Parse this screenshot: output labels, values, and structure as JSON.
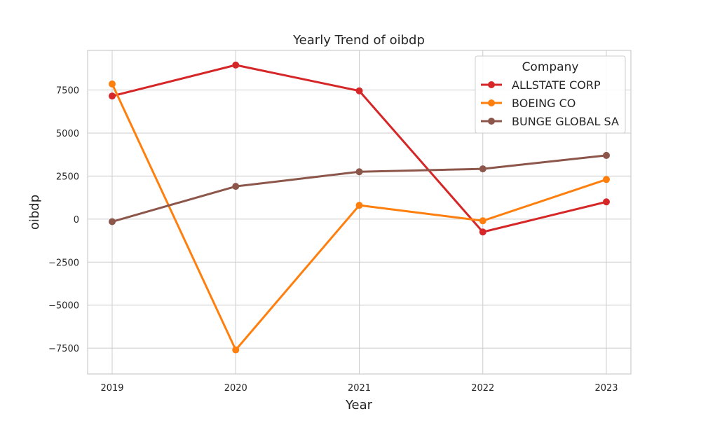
{
  "chart_data": {
    "type": "line",
    "title": "Yearly Trend of oibdp",
    "xlabel": "Year",
    "ylabel": "oibdp",
    "categories": [
      "2019",
      "2020",
      "2021",
      "2022",
      "2023"
    ],
    "ylim": [
      -9000,
      9800
    ],
    "yticks": [
      -7500,
      -5000,
      -2500,
      0,
      2500,
      5000,
      7500
    ],
    "ytick_labels": [
      "−7500",
      "−5000",
      "−2500",
      "0",
      "2500",
      "5000",
      "7500"
    ],
    "grid": true,
    "legend": {
      "title": "Company",
      "placement": "top-right"
    },
    "series": [
      {
        "name": "ALLSTATE CORP",
        "color": "#d62728",
        "values": [
          7150,
          8950,
          7450,
          -750,
          1000
        ]
      },
      {
        "name": "BOEING CO",
        "color": "#ff7f0e",
        "values": [
          7850,
          -7600,
          800,
          -100,
          2300
        ]
      },
      {
        "name": "BUNGE GLOBAL SA",
        "color": "#8c564b",
        "values": [
          -150,
          1900,
          2750,
          2920,
          3700
        ]
      }
    ]
  }
}
